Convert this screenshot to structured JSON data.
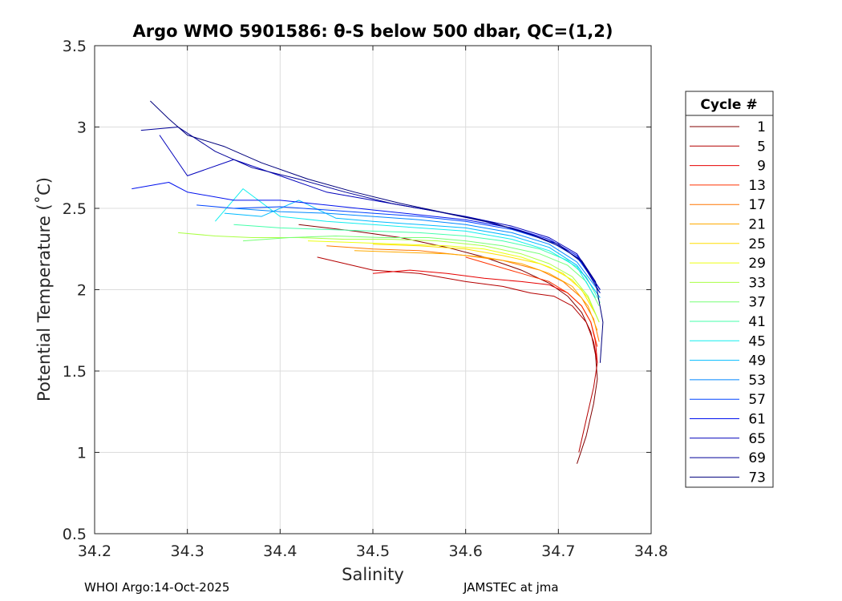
{
  "chart_data": {
    "type": "line",
    "title": "Argo WMO 5901586: θ-S below 500 dbar,  QC=(1,2)",
    "xlabel": "Salinity",
    "ylabel": "Potential Temperature (˚C)",
    "xlim": [
      34.2,
      34.8
    ],
    "ylim": [
      0.5,
      3.5
    ],
    "x_ticks": [
      "34.2",
      "34.3",
      "34.4",
      "34.5",
      "34.6",
      "34.7",
      "34.8"
    ],
    "y_ticks": [
      "0.5",
      "1",
      "1.5",
      "2",
      "2.5",
      "3",
      "3.5"
    ],
    "grid": true,
    "legend": {
      "title": "Cycle #",
      "placement": "right-outside",
      "entries": [
        {
          "label": "1",
          "color": "#800000"
        },
        {
          "label": "5",
          "color": "#b40000"
        },
        {
          "label": "9",
          "color": "#e60000"
        },
        {
          "label": "13",
          "color": "#ff3300"
        },
        {
          "label": "17",
          "color": "#ff7700"
        },
        {
          "label": "21",
          "color": "#ffaa00"
        },
        {
          "label": "25",
          "color": "#ffdd00"
        },
        {
          "label": "29",
          "color": "#eeff11"
        },
        {
          "label": "33",
          "color": "#aaff44"
        },
        {
          "label": "37",
          "color": "#77ff77"
        },
        {
          "label": "41",
          "color": "#44ffaa"
        },
        {
          "label": "45",
          "color": "#11eeee"
        },
        {
          "label": "49",
          "color": "#00bbff"
        },
        {
          "label": "53",
          "color": "#0088ff"
        },
        {
          "label": "57",
          "color": "#0044ff"
        },
        {
          "label": "61",
          "color": "#0011ee"
        },
        {
          "label": "65",
          "color": "#0000bb"
        },
        {
          "label": "69",
          "color": "#000099"
        },
        {
          "label": "73",
          "color": "#00007d"
        }
      ]
    },
    "series": [
      {
        "name": "Cycle 1",
        "color": "#800000",
        "x": [
          34.42,
          34.48,
          34.53,
          34.58,
          34.62,
          34.66,
          34.69,
          34.71,
          34.725,
          34.735,
          34.74,
          34.742,
          34.738,
          34.73,
          34.72
        ],
        "y": [
          2.4,
          2.36,
          2.32,
          2.26,
          2.2,
          2.12,
          2.04,
          1.96,
          1.86,
          1.74,
          1.6,
          1.45,
          1.3,
          1.1,
          0.93
        ]
      },
      {
        "name": "Cycle 5",
        "color": "#b40000",
        "x": [
          34.44,
          34.5,
          34.55,
          34.6,
          34.64,
          34.67,
          34.695,
          34.715,
          34.73,
          34.738,
          34.742,
          34.738,
          34.73,
          34.722
        ],
        "y": [
          2.2,
          2.12,
          2.1,
          2.05,
          2.02,
          1.98,
          1.96,
          1.9,
          1.8,
          1.68,
          1.55,
          1.4,
          1.2,
          1.0
        ]
      },
      {
        "name": "Cycle 9",
        "color": "#e60000",
        "x": [
          34.5,
          34.54,
          34.58,
          34.62,
          34.66,
          34.69,
          34.71,
          34.725,
          34.735,
          34.74,
          34.742
        ],
        "y": [
          2.1,
          2.12,
          2.1,
          2.07,
          2.05,
          2.03,
          1.98,
          1.9,
          1.8,
          1.68,
          1.55
        ]
      },
      {
        "name": "Cycle 13",
        "color": "#ff3300",
        "x": [
          34.6,
          34.63,
          34.66,
          34.69,
          34.71,
          34.725,
          34.735,
          34.742
        ],
        "y": [
          2.2,
          2.15,
          2.1,
          2.05,
          1.98,
          1.9,
          1.8,
          1.65
        ]
      },
      {
        "name": "Cycle 17",
        "color": "#ff7700",
        "x": [
          34.45,
          34.5,
          34.55,
          34.6,
          34.64,
          34.68,
          34.705,
          34.725,
          34.738,
          34.744
        ],
        "y": [
          2.27,
          2.25,
          2.24,
          2.21,
          2.18,
          2.12,
          2.05,
          1.95,
          1.82,
          1.68
        ]
      },
      {
        "name": "Cycle 21",
        "color": "#ffaa00",
        "x": [
          34.48,
          34.53,
          34.58,
          34.62,
          34.66,
          34.69,
          34.715,
          34.732,
          34.742
        ],
        "y": [
          2.24,
          2.23,
          2.22,
          2.2,
          2.16,
          2.1,
          2.02,
          1.9,
          1.75
        ]
      },
      {
        "name": "Cycle 25",
        "color": "#ffdd00",
        "x": [
          34.5,
          34.55,
          34.6,
          34.64,
          34.68,
          34.705,
          34.725,
          34.74
        ],
        "y": [
          2.28,
          2.27,
          2.25,
          2.21,
          2.16,
          2.1,
          2.0,
          1.85
        ]
      },
      {
        "name": "Cycle 29",
        "color": "#eeff11",
        "x": [
          34.43,
          34.48,
          34.53,
          34.58,
          34.62,
          34.66,
          34.69,
          34.715,
          34.732,
          34.744
        ],
        "y": [
          2.3,
          2.29,
          2.28,
          2.27,
          2.25,
          2.2,
          2.14,
          2.06,
          1.95,
          1.8
        ]
      },
      {
        "name": "Cycle 33",
        "color": "#aaff44",
        "x": [
          34.29,
          34.33,
          34.37,
          34.42,
          34.47,
          34.52,
          34.57,
          34.62,
          34.66,
          34.69,
          34.715,
          34.732,
          34.744
        ],
        "y": [
          2.35,
          2.33,
          2.32,
          2.32,
          2.31,
          2.31,
          2.3,
          2.27,
          2.22,
          2.16,
          2.08,
          1.96,
          1.8
        ]
      },
      {
        "name": "Cycle 37",
        "color": "#77ff77",
        "x": [
          34.36,
          34.41,
          34.46,
          34.51,
          34.56,
          34.6,
          34.64,
          34.68,
          34.71,
          34.73,
          34.744
        ],
        "y": [
          2.3,
          2.32,
          2.33,
          2.32,
          2.32,
          2.3,
          2.27,
          2.22,
          2.15,
          2.05,
          1.9
        ]
      },
      {
        "name": "Cycle 41",
        "color": "#44ffaa",
        "x": [
          34.35,
          34.4,
          34.45,
          34.5,
          34.55,
          34.6,
          34.64,
          34.68,
          34.71,
          34.73,
          34.745
        ],
        "y": [
          2.4,
          2.38,
          2.37,
          2.36,
          2.35,
          2.33,
          2.3,
          2.25,
          2.18,
          2.08,
          1.92
        ]
      },
      {
        "name": "Cycle 45",
        "color": "#11eeee",
        "x": [
          34.33,
          34.36,
          34.4,
          34.45,
          34.5,
          34.55,
          34.6,
          34.65,
          34.69,
          34.72,
          34.74
        ],
        "y": [
          2.42,
          2.62,
          2.45,
          2.42,
          2.4,
          2.38,
          2.36,
          2.31,
          2.24,
          2.14,
          1.95
        ]
      },
      {
        "name": "Cycle 49",
        "color": "#00bbff",
        "x": [
          34.34,
          34.38,
          34.42,
          34.46,
          34.5,
          34.55,
          34.6,
          34.65,
          34.69,
          34.72,
          34.745
        ],
        "y": [
          2.47,
          2.45,
          2.55,
          2.44,
          2.42,
          2.4,
          2.38,
          2.33,
          2.26,
          2.15,
          1.95
        ]
      },
      {
        "name": "Cycle 53",
        "color": "#0088ff",
        "x": [
          34.35,
          34.4,
          34.45,
          34.5,
          34.55,
          34.6,
          34.65,
          34.69,
          34.72,
          34.745
        ],
        "y": [
          2.5,
          2.48,
          2.47,
          2.45,
          2.43,
          2.4,
          2.35,
          2.28,
          2.17,
          1.98
        ]
      },
      {
        "name": "Cycle 57",
        "color": "#0044ff",
        "x": [
          34.31,
          34.35,
          34.4,
          34.45,
          34.5,
          34.55,
          34.6,
          34.65,
          34.69,
          34.72,
          34.745
        ],
        "y": [
          2.52,
          2.5,
          2.51,
          2.49,
          2.47,
          2.45,
          2.42,
          2.37,
          2.3,
          2.2,
          2.0
        ]
      },
      {
        "name": "Cycle 61",
        "color": "#0011ee",
        "x": [
          34.24,
          34.28,
          34.3,
          34.35,
          34.4,
          34.45,
          34.5,
          34.55,
          34.6,
          34.65,
          34.69,
          34.72,
          34.745
        ],
        "y": [
          2.62,
          2.66,
          2.6,
          2.55,
          2.55,
          2.52,
          2.49,
          2.46,
          2.43,
          2.38,
          2.31,
          2.21,
          2.0
        ]
      },
      {
        "name": "Cycle 65",
        "color": "#0000bb",
        "x": [
          34.27,
          34.3,
          34.35,
          34.4,
          34.45,
          34.5,
          34.55,
          34.6,
          34.65,
          34.69,
          34.72,
          34.745
        ],
        "y": [
          2.95,
          2.7,
          2.8,
          2.7,
          2.6,
          2.55,
          2.5,
          2.45,
          2.39,
          2.32,
          2.22,
          2.0
        ]
      },
      {
        "name": "Cycle 69",
        "color": "#000099",
        "x": [
          34.25,
          34.29,
          34.33,
          34.37,
          34.42,
          34.47,
          34.52,
          34.57,
          34.62,
          34.66,
          34.7,
          34.725,
          34.745
        ],
        "y": [
          2.98,
          3.0,
          2.85,
          2.75,
          2.68,
          2.6,
          2.53,
          2.48,
          2.42,
          2.36,
          2.28,
          2.17,
          1.98
        ]
      },
      {
        "name": "Cycle 73",
        "color": "#00007d",
        "x": [
          34.26,
          34.28,
          34.3,
          34.34,
          34.38,
          34.43,
          34.48,
          34.53,
          34.58,
          34.63,
          34.67,
          34.7,
          34.725,
          34.74,
          34.748,
          34.745
        ],
        "y": [
          3.16,
          3.05,
          2.95,
          2.88,
          2.78,
          2.68,
          2.6,
          2.53,
          2.47,
          2.41,
          2.34,
          2.27,
          2.18,
          2.05,
          1.8,
          1.55
        ]
      }
    ]
  },
  "footer": {
    "left": "WHOI Argo:14-Oct-2025",
    "right": "JAMSTEC at jma"
  }
}
